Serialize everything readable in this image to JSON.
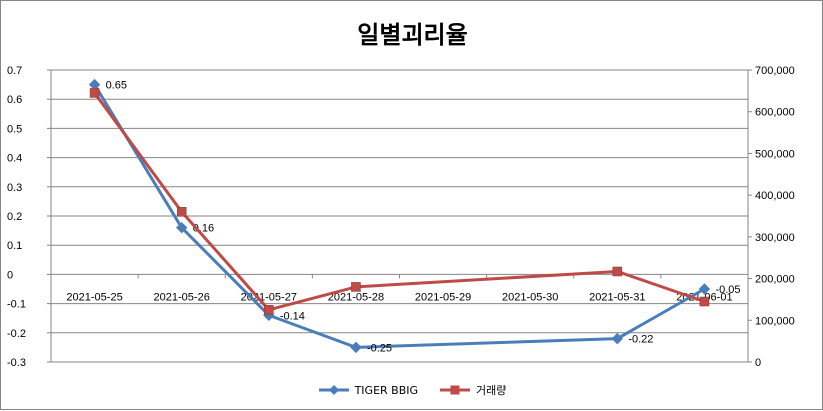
{
  "chart_data": {
    "type": "line",
    "title": "일별괴리율",
    "categories": [
      "2021-05-25",
      "2021-05-26",
      "2021-05-27",
      "2021-05-28",
      "2021-05-29",
      "2021-05-30",
      "2021-05-31",
      "2021-06-01"
    ],
    "y_left": {
      "ylim": [
        -0.3,
        0.7
      ],
      "ticks": [
        "0.7",
        "0.6",
        "0.5",
        "0.4",
        "0.3",
        "0.2",
        "0.1",
        "0",
        "-0.1",
        "-0.2",
        "-0.3"
      ]
    },
    "y_right": {
      "ylim": [
        0,
        700000
      ],
      "ticks": [
        "700,000",
        "600,000",
        "500,000",
        "400,000",
        "300,000",
        "200,000",
        "100,000",
        "0"
      ]
    },
    "grid": "horizontal",
    "legend_position": "bottom",
    "series": [
      {
        "name": "TIGER BBIG",
        "axis": "left",
        "color": "#4a7ebb",
        "marker": "diamond",
        "x": [
          "2021-05-25",
          "2021-05-26",
          "2021-05-27",
          "2021-05-28",
          "2021-05-31",
          "2021-06-01"
        ],
        "values": [
          0.65,
          0.16,
          -0.14,
          -0.25,
          -0.22,
          -0.05
        ],
        "labels": [
          "0.65",
          "0.16",
          "-0.14",
          "-0.25",
          "-0.22",
          "-0.05"
        ]
      },
      {
        "name": "거래량",
        "axis": "right",
        "color": "#be4b48",
        "marker": "square",
        "x": [
          "2021-05-25",
          "2021-05-26",
          "2021-05-27",
          "2021-05-28",
          "2021-05-31",
          "2021-06-01"
        ],
        "values": [
          645000,
          360000,
          125000,
          180000,
          217000,
          145000
        ]
      }
    ]
  }
}
